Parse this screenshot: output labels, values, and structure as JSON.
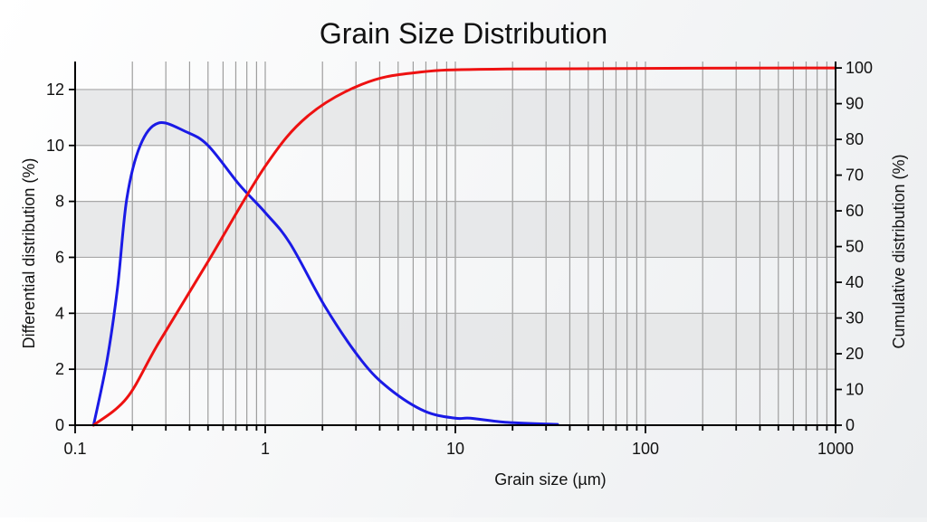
{
  "chart_data": {
    "type": "line",
    "title": "Grain Size Distribution",
    "xlabel": "Grain size (µm)",
    "ylabel": "Differential distribution (%)",
    "y2label": "Cumulative distribution (%)",
    "xscale": "log",
    "xlim": [
      0.1,
      1000
    ],
    "ylim": [
      0,
      13
    ],
    "y2lim": [
      0,
      101.8
    ],
    "x_ticks": [
      0.1,
      1,
      10,
      100,
      1000
    ],
    "x_tick_labels": [
      "0.1",
      "1",
      "10",
      "100",
      "1000"
    ],
    "y_ticks": [
      0,
      2,
      4,
      6,
      8,
      10,
      12
    ],
    "y_tick_labels": [
      "0",
      "2",
      "4",
      "6",
      "8",
      "10",
      "12"
    ],
    "y2_ticks": [
      0,
      10,
      20,
      30,
      40,
      50,
      60,
      70,
      80,
      90,
      100
    ],
    "y2_tick_labels": [
      "0",
      "10",
      "20",
      "30",
      "40",
      "50",
      "60",
      "70",
      "80",
      "90",
      "100"
    ],
    "grid": true,
    "bands": [
      [
        2,
        4
      ],
      [
        6,
        8
      ],
      [
        10,
        12
      ]
    ],
    "legend": null,
    "series": [
      {
        "name": "Differential distribution",
        "axis": "left",
        "color": "#1a1ae6",
        "x": [
          0.125,
          0.147,
          0.167,
          0.187,
          0.22,
          0.274,
          0.38,
          0.5,
          0.73,
          1.0,
          1.35,
          2.08,
          3.22,
          4.5,
          6.9,
          10,
          12,
          18.8,
          34.5
        ],
        "values": [
          0,
          2.3,
          4.9,
          8.1,
          10.0,
          10.8,
          10.5,
          10.0,
          8.6,
          7.6,
          6.5,
          4.2,
          2.3,
          1.3,
          0.5,
          0.25,
          0.25,
          0.1,
          0.03
        ]
      },
      {
        "name": "Cumulative distribution",
        "axis": "right",
        "color": "#ee1111",
        "x": [
          0.125,
          0.187,
          0.274,
          0.5,
          1.0,
          1.67,
          3.22,
          6.2,
          18.8,
          1000
        ],
        "values": [
          0,
          7.6,
          22.9,
          45.8,
          72.5,
          86.5,
          95.4,
          98.7,
          99.7,
          100
        ]
      }
    ]
  }
}
